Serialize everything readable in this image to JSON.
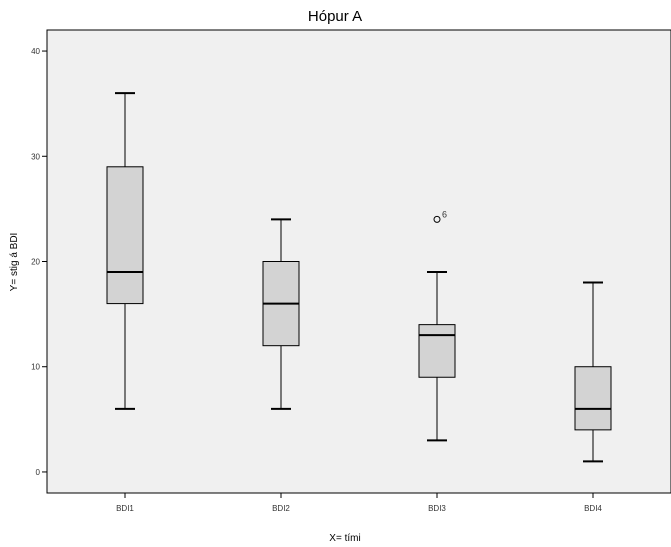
{
  "chart_data": {
    "type": "boxplot",
    "title": "Hópur A",
    "xlabel": "X= tími",
    "ylabel": "Y= stig á BDI",
    "ylim": [
      -2,
      42
    ],
    "y_ticks": [
      0,
      10,
      20,
      30,
      40
    ],
    "grid": false,
    "colors": {
      "plot_bg": "#f0f0f0",
      "box_fill": "#d3d3d3",
      "stroke": "#000000"
    },
    "categories": [
      "BDI1",
      "BDI2",
      "BDI3",
      "BDI4"
    ],
    "boxes": [
      {
        "category": "BDI1",
        "min": 6,
        "q1": 16,
        "median": 19,
        "q3": 29,
        "max": 36,
        "outliers": []
      },
      {
        "category": "BDI2",
        "min": 6,
        "q1": 12,
        "median": 16,
        "q3": 20,
        "max": 24,
        "outliers": []
      },
      {
        "category": "BDI3",
        "min": 3,
        "q1": 9,
        "median": 13,
        "q3": 14,
        "max": 19,
        "outliers": [
          {
            "value": 24,
            "label": "6"
          }
        ]
      },
      {
        "category": "BDI4",
        "min": 1,
        "q1": 4,
        "median": 6,
        "q3": 10,
        "max": 18,
        "outliers": []
      }
    ]
  }
}
